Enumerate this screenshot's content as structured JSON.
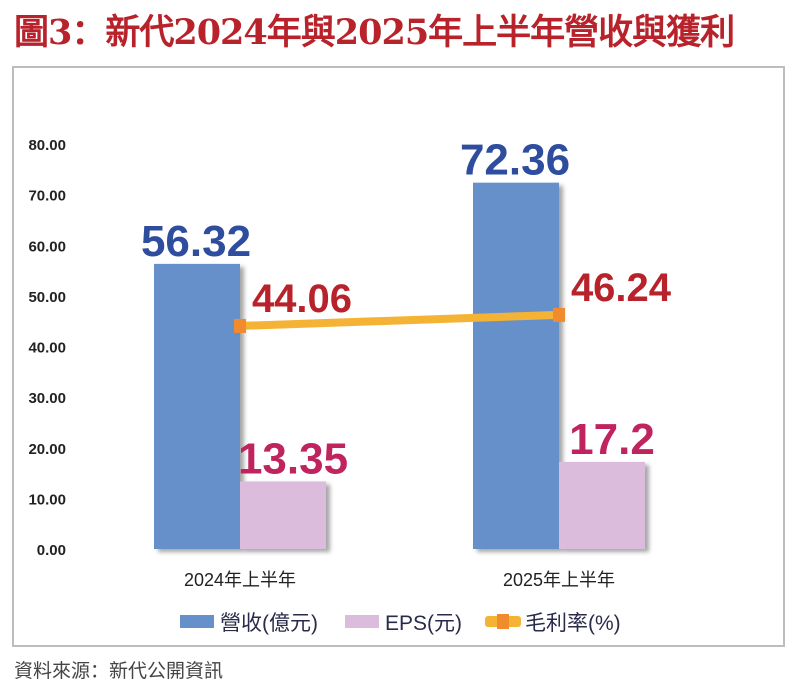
{
  "title": "圖3：新代2024年與2025年上半年營收與獲利",
  "source": "資料來源：新代公開資訊",
  "chart_data": {
    "type": "bar",
    "title": "圖3：新代2024年與2025年上半年營收與獲利",
    "categories": [
      "2024年上半年",
      "2025年上半年"
    ],
    "ylim": [
      0,
      80
    ],
    "yticks": [
      "0.00",
      "10.00",
      "20.00",
      "30.00",
      "40.00",
      "50.00",
      "60.00",
      "70.00",
      "80.00"
    ],
    "grid": false,
    "legend_position": "bottom",
    "series": [
      {
        "name": "營收(億元)",
        "kind": "bar",
        "values": [
          56.32,
          72.36
        ],
        "labels": [
          "56.32",
          "72.36"
        ],
        "color": "#6590ca",
        "label_color": "#2f4d9e"
      },
      {
        "name": "EPS(元)",
        "kind": "bar",
        "values": [
          13.35,
          17.2
        ],
        "labels": [
          "13.35",
          "17.2"
        ],
        "color": "#dcbcdc",
        "label_color": "#c0245e"
      },
      {
        "name": "毛利率(%)",
        "kind": "line",
        "values": [
          44.06,
          46.24
        ],
        "labels": [
          "44.06",
          "46.24"
        ],
        "color": "#f5b335",
        "marker_color": "#f08c2e",
        "label_color": "#b8232b"
      }
    ]
  }
}
